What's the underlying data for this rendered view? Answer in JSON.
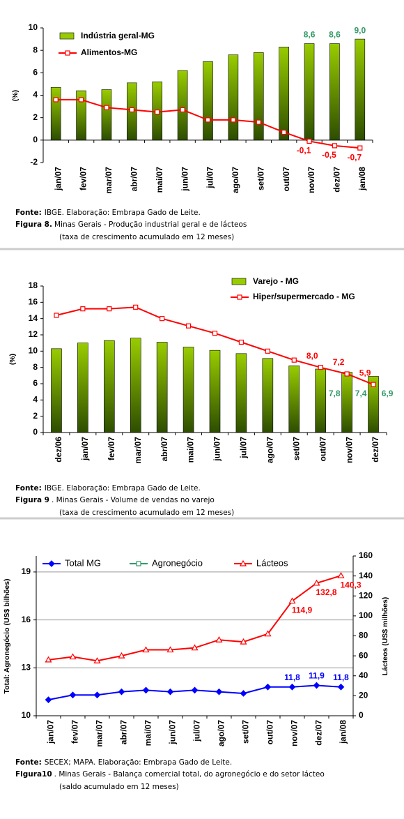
{
  "chart_data": [
    {
      "type": "bar",
      "ylabel": "(%)",
      "categories": [
        "jan/07",
        "fev/07",
        "mar/07",
        "abr/07",
        "mai/07",
        "jun/07",
        "jul/07",
        "ago/07",
        "set/07",
        "out/07",
        "nov/07",
        "dez/07",
        "jan/08"
      ],
      "series": [
        {
          "name": "Indústria geral-MG",
          "kind": "bar",
          "color": "#99cc00",
          "label_color": "#339966",
          "values": [
            4.7,
            4.4,
            4.5,
            5.1,
            5.2,
            6.2,
            7.0,
            7.6,
            7.8,
            8.3,
            8.6,
            8.6,
            9.0
          ],
          "value_labels": [
            null,
            null,
            null,
            null,
            null,
            null,
            null,
            null,
            null,
            null,
            "8,6",
            "8,6",
            "9,0"
          ]
        },
        {
          "name": "Alimentos-MG",
          "kind": "line",
          "marker": "square",
          "color": "#ff0000",
          "label_color": "#ff0000",
          "values": [
            3.6,
            3.6,
            2.9,
            2.7,
            2.5,
            2.7,
            1.8,
            1.8,
            1.6,
            0.7,
            -0.1,
            -0.5,
            -0.7
          ],
          "value_labels": [
            null,
            null,
            null,
            null,
            null,
            null,
            null,
            null,
            null,
            null,
            "-0,1",
            "-0,5",
            "-0,7"
          ]
        }
      ],
      "ylim": [
        -2,
        10
      ],
      "yticks": [
        -2,
        0,
        2,
        4,
        6,
        8,
        10
      ],
      "grid": false,
      "source_label": "Fonte:",
      "source": "IBGE. Elaboração: Embrapa Gado de Leite.",
      "figure_label": "Figura 8.",
      "caption": "Minas Gerais - Produção industrial geral e de lácteos",
      "caption_note": "(taxa de crescimento acumulado em 12 meses)"
    },
    {
      "type": "bar",
      "ylabel": "(%)",
      "categories": [
        "dez/06",
        "jan/07",
        "fev/07",
        "mar/07",
        "abr/07",
        "mai/07",
        "jun/07",
        "jul/07",
        "ago/07",
        "set/07",
        "out/07",
        "nov/07",
        "dez/07"
      ],
      "series": [
        {
          "name": "Varejo - MG",
          "kind": "bar",
          "color": "#99cc00",
          "label_color": "#339966",
          "values": [
            10.3,
            11.0,
            11.3,
            11.6,
            11.1,
            10.5,
            10.1,
            9.7,
            9.1,
            8.2,
            7.8,
            7.4,
            6.9
          ],
          "value_labels": [
            null,
            null,
            null,
            null,
            null,
            null,
            null,
            null,
            null,
            null,
            "7,8",
            "7,4",
            "6,9"
          ]
        },
        {
          "name": "Hiper/supermercado - MG",
          "kind": "line",
          "marker": "square",
          "color": "#ff0000",
          "label_color": "#ff0000",
          "values": [
            14.4,
            15.2,
            15.2,
            15.4,
            14.0,
            13.1,
            12.2,
            11.1,
            10.0,
            8.9,
            8.0,
            7.2,
            5.9
          ],
          "value_labels": [
            null,
            null,
            null,
            null,
            null,
            null,
            null,
            null,
            null,
            null,
            "8,0",
            "7,2",
            "5,9"
          ]
        }
      ],
      "ylim": [
        0,
        18
      ],
      "yticks": [
        0,
        2,
        4,
        6,
        8,
        10,
        12,
        14,
        16,
        18
      ],
      "grid": false,
      "source_label": "Fonte:",
      "source": "IBGE. Elaboração: Embrapa Gado de Leite.",
      "figure_label": "Figura 9",
      "caption": ". Minas Gerais - Volume de vendas no varejo",
      "caption_note": "(taxa de crescimento acumulado em 12 meses)"
    },
    {
      "type": "line",
      "ylabel": "Total: Agronegócio (US$ bilhões)",
      "y2label": "Lácteos (US$ milhões)",
      "categories": [
        "jan/07",
        "fev/07",
        "mar/07",
        "abr/07",
        "mai/07",
        "jun/07",
        "jul/07",
        "ago/07",
        "set/07",
        "out/07",
        "nov/07",
        "dez/07",
        "jan/08"
      ],
      "series": [
        {
          "name": "Total MG",
          "kind": "line",
          "marker": "diamond",
          "color": "#0000ff",
          "label_color": "#0000ff",
          "values": [
            11.0,
            11.3,
            11.3,
            11.5,
            11.6,
            11.5,
            11.6,
            11.5,
            11.4,
            11.8,
            11.8,
            11.9,
            11.8
          ],
          "value_labels": [
            null,
            null,
            null,
            null,
            null,
            null,
            null,
            null,
            null,
            null,
            "11,8",
            "11,9",
            "11,8"
          ]
        },
        {
          "name": "Agronegócio",
          "kind": "line",
          "marker": "square",
          "color": "#339966",
          "values": [
            null,
            null,
            null,
            null,
            null,
            null,
            null,
            null,
            null,
            null,
            null,
            null,
            null
          ]
        },
        {
          "name": "Lácteos",
          "kind": "line",
          "marker": "triangle",
          "color": "#ff0000",
          "label_color": "#ff0000",
          "axis": "y2",
          "values": [
            56,
            59,
            55,
            60,
            66,
            66,
            68,
            76,
            74,
            82,
            114.9,
            132.8,
            140.3
          ],
          "value_labels": [
            null,
            null,
            null,
            null,
            null,
            null,
            null,
            null,
            null,
            null,
            "114,9",
            "132,8",
            "140,3"
          ]
        }
      ],
      "ylim": [
        10,
        20
      ],
      "yticks": [
        10,
        13,
        16,
        19
      ],
      "y2lim": [
        0,
        160
      ],
      "y2ticks": [
        0,
        20,
        40,
        60,
        80,
        100,
        120,
        140,
        160
      ],
      "grid": true,
      "source_label": "Fonte:",
      "source": "SECEX; MAPA. Elaboração: Embrapa Gado de Leite.",
      "figure_label": "Figura10",
      "caption": ". Minas Gerais - Balança comercial total, do agronegócio e do setor lácteo",
      "caption_note": "(saldo acumulado em 12 meses)"
    }
  ]
}
